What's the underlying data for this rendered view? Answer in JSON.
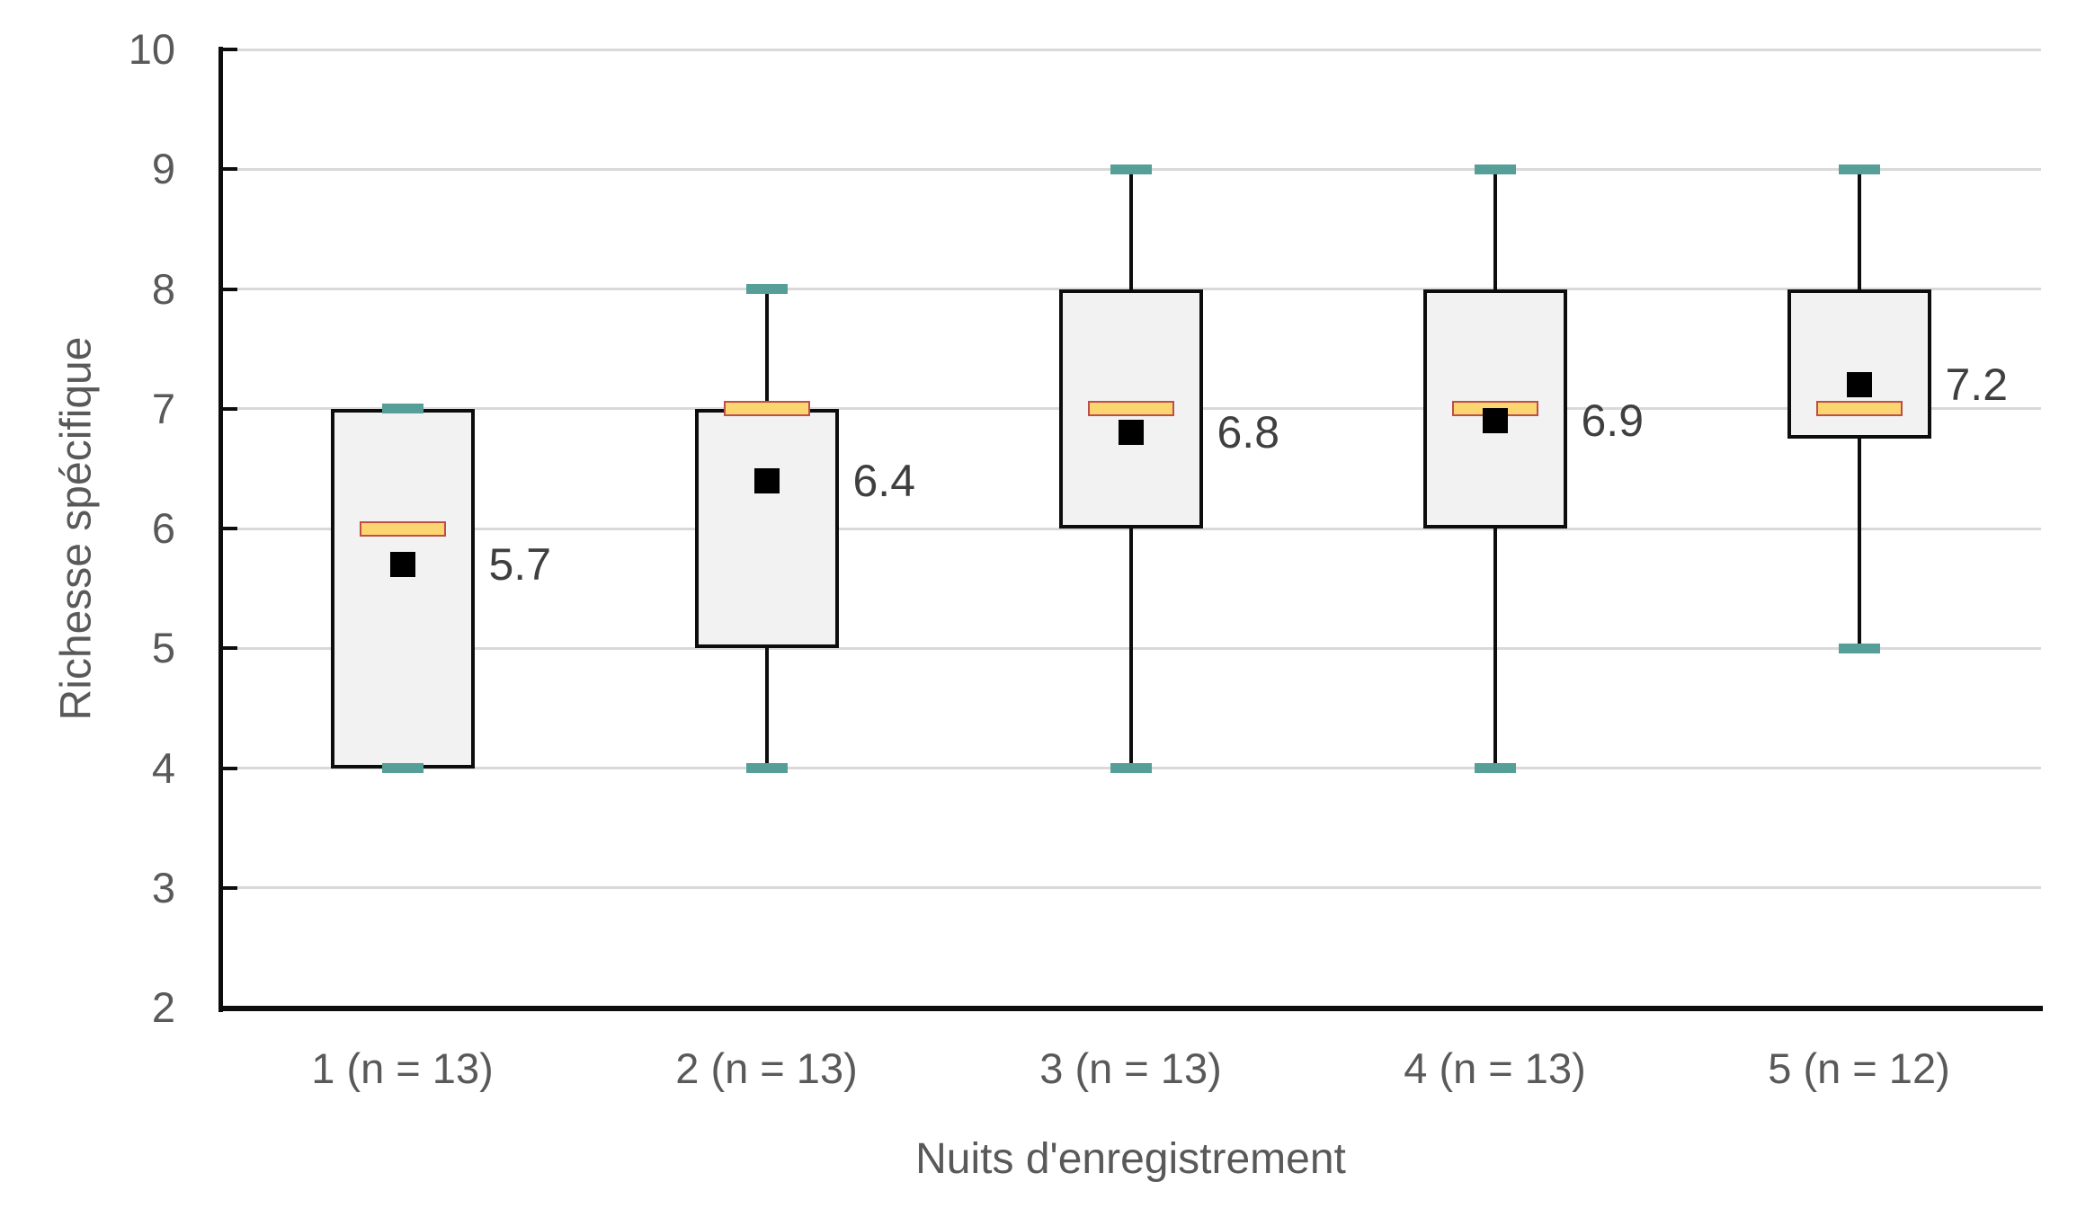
{
  "chart_data": {
    "type": "boxplot",
    "title": "",
    "xlabel": "Nuits d'enregistrement",
    "ylabel": "Richesse spécifique",
    "ylim": [
      2,
      10
    ],
    "ytick_interval": 1,
    "yticks": [
      "2",
      "3",
      "4",
      "5",
      "6",
      "7",
      "8",
      "9",
      "10"
    ],
    "grid": "horizontal-gridlines-on",
    "legend": "none",
    "categories": [
      "1 (n = 13)",
      "2 (n = 13)",
      "3 (n = 13)",
      "4 (n = 13)",
      "5 (n = 12)"
    ],
    "boxes": [
      {
        "category": "1 (n = 13)",
        "whisker_low": 4,
        "q1": 4,
        "median": 6,
        "q3": 7,
        "whisker_high": 7,
        "mean": 5.7,
        "mean_label": "5.7"
      },
      {
        "category": "2 (n = 13)",
        "whisker_low": 4,
        "q1": 5,
        "median": 7,
        "q3": 7,
        "whisker_high": 8,
        "mean": 6.4,
        "mean_label": "6.4"
      },
      {
        "category": "3 (n = 13)",
        "whisker_low": 4,
        "q1": 6,
        "median": 7,
        "q3": 8,
        "whisker_high": 9,
        "mean": 6.8,
        "mean_label": "6.8"
      },
      {
        "category": "4 (n = 13)",
        "whisker_low": 4,
        "q1": 6,
        "median": 7,
        "q3": 8,
        "whisker_high": 9,
        "mean": 6.9,
        "mean_label": "6.9"
      },
      {
        "category": "5 (n = 12)",
        "whisker_low": 5,
        "q1": 6.75,
        "median": 7,
        "q3": 8,
        "whisker_high": 9,
        "mean": 7.2,
        "mean_label": "7.2"
      }
    ],
    "colors": {
      "box_fill": "#F2F2F2",
      "box_border": "#0D0D0D",
      "whisker": "#0D0D0D",
      "whisker_cap": "#569E98",
      "median_fill": "#FAD570",
      "median_border": "#C04D48",
      "mean_marker": "#000000",
      "gridline": "#D9D9D9",
      "axis_line": "#0D0D0D",
      "axis_text": "#595959",
      "mean_label_text": "#3F3F3F",
      "background": "#FFFFFF"
    }
  }
}
